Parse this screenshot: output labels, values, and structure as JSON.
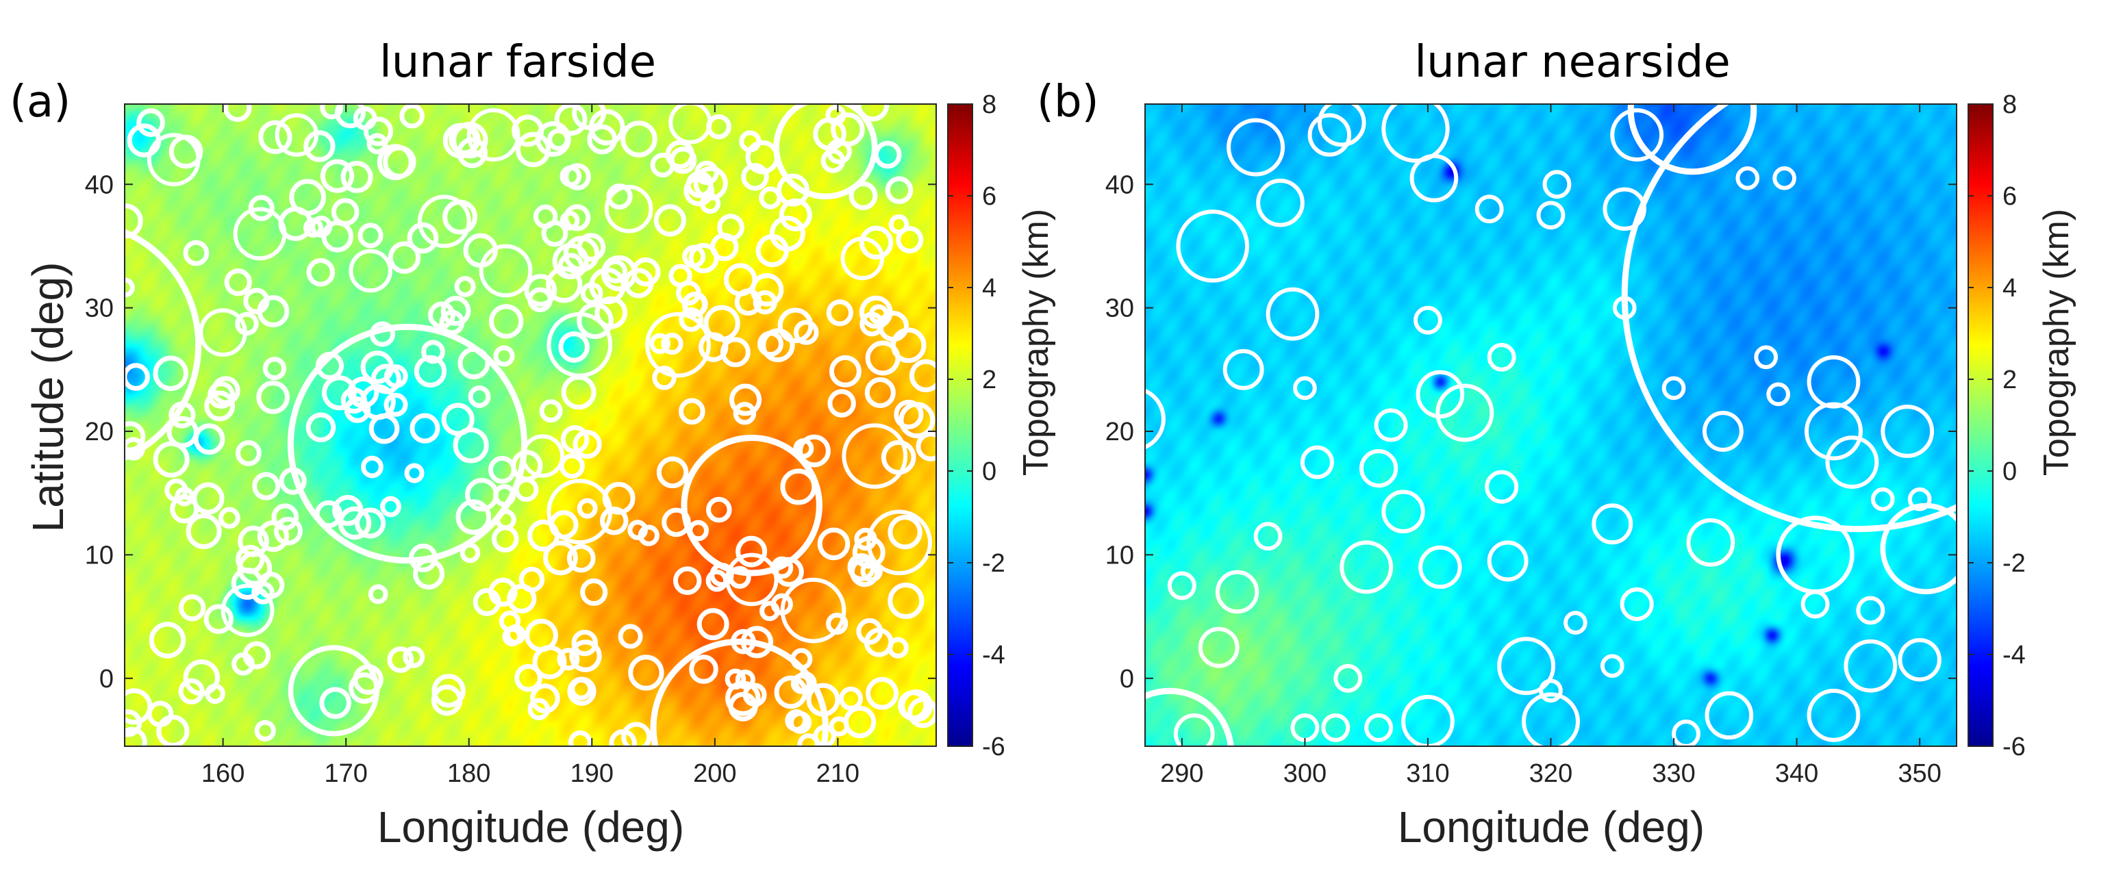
{
  "chart_data": [
    {
      "type": "heatmap",
      "panel_label": "(a)",
      "title": "lunar farside",
      "xlabel": "Longitude (deg)",
      "ylabel": "Latitude (deg)",
      "xlim": [
        152,
        218
      ],
      "ylim": [
        -5.5,
        46.5
      ],
      "xticks": [
        160,
        170,
        180,
        190,
        200,
        210
      ],
      "yticks": [
        0,
        10,
        20,
        30,
        40
      ],
      "colorbar": {
        "label": "Topography (km)",
        "range": [
          -6,
          8
        ],
        "ticks": [
          -6,
          -4,
          -2,
          0,
          2,
          4,
          6,
          8
        ],
        "colormap": "jet"
      },
      "field": {
        "background_km": 2.2,
        "blobs": [
          {
            "x": 205,
            "y": 12,
            "r": 14,
            "v": 5.5
          },
          {
            "x": 195,
            "y": 5,
            "r": 12,
            "v": 4.5
          },
          {
            "x": 212,
            "y": 25,
            "r": 10,
            "v": 4.0
          },
          {
            "x": 200,
            "y": 28,
            "r": 8,
            "v": 3.0
          },
          {
            "x": 185,
            "y": 30,
            "r": 10,
            "v": 1.5
          },
          {
            "x": 170,
            "y": 30,
            "r": 12,
            "v": 1.0
          },
          {
            "x": 160,
            "y": 40,
            "r": 8,
            "v": 0.8
          },
          {
            "x": 175,
            "y": 40,
            "r": 8,
            "v": 1.5
          },
          {
            "x": 190,
            "y": 42,
            "r": 8,
            "v": 1.2
          },
          {
            "x": 158,
            "y": 15,
            "r": 10,
            "v": 1.5
          },
          {
            "x": 175,
            "y": 5,
            "r": 10,
            "v": 1.8
          },
          {
            "x": 165,
            "y": 0,
            "r": 8,
            "v": 1.5
          },
          {
            "x": 202,
            "y": -2,
            "r": 6,
            "v": 3.5
          }
        ],
        "basins": [
          {
            "x": 174,
            "y": 19,
            "r": 10,
            "v": -1.5
          },
          {
            "x": 152,
            "y": 25,
            "r": 4,
            "v": -2.2
          },
          {
            "x": 162,
            "y": 6,
            "r": 2,
            "v": -2.5
          },
          {
            "x": 158,
            "y": 19,
            "r": 1.5,
            "v": -1.5
          },
          {
            "x": 153,
            "y": 44,
            "r": 3,
            "v": -0.8
          },
          {
            "x": 188,
            "y": 27,
            "r": 3,
            "v": -0.5
          },
          {
            "x": 170,
            "y": 44,
            "r": 2.5,
            "v": -0.5
          },
          {
            "x": 214,
            "y": 42,
            "r": 3,
            "v": -0.2
          },
          {
            "x": 168,
            "y": -2,
            "r": 4,
            "v": 0.3
          }
        ]
      },
      "craters": [
        {
          "lon": 175.0,
          "lat": 19.0,
          "r": 9.5
        },
        {
          "lon": 148.0,
          "lat": 27.0,
          "r": 10.0
        },
        {
          "lon": 202.0,
          "lat": -4.0,
          "r": 7.0
        },
        {
          "lon": 209.0,
          "lat": 43.0,
          "r": 4.0
        },
        {
          "lon": 203.0,
          "lat": 14.0,
          "r": 5.5
        },
        {
          "lon": 197.0,
          "lat": 27.0,
          "r": 2.5
        },
        {
          "lon": 213.0,
          "lat": 18.0,
          "r": 2.5
        },
        {
          "lon": 189.0,
          "lat": 13.5,
          "r": 2.5
        },
        {
          "lon": 189.0,
          "lat": 27.0,
          "r": 2.5
        },
        {
          "lon": 178.0,
          "lat": 37.0,
          "r": 2.0
        },
        {
          "lon": 162.0,
          "lat": 5.5,
          "r": 2.0
        },
        {
          "lon": 169.0,
          "lat": -1.0,
          "r": 3.5
        },
        {
          "lon": 208.0,
          "lat": 5.5,
          "r": 2.5
        },
        {
          "lon": 156.0,
          "lat": 42.0,
          "r": 2.0
        },
        {
          "lon": 163.0,
          "lat": 36.0,
          "r": 2.0
        },
        {
          "lon": 183.0,
          "lat": 33.0,
          "r": 2.0
        },
        {
          "lon": 203.0,
          "lat": 8.0,
          "r": 2.0
        },
        {
          "lon": 215.0,
          "lat": 11.0,
          "r": 2.5
        },
        {
          "lon": 182.0,
          "lat": 44.0,
          "r": 2.0
        },
        {
          "lon": 160.0,
          "lat": 28.0,
          "r": 1.8
        },
        {
          "lon": 172.0,
          "lat": 33.0,
          "r": 1.6
        },
        {
          "lon": 193.0,
          "lat": 38.0,
          "r": 1.8
        },
        {
          "lon": 166.0,
          "lat": 44.0,
          "r": 1.6
        },
        {
          "lon": 198.0,
          "lat": 45.0,
          "r": 1.6
        },
        {
          "lon": 186.0,
          "lat": 18.0,
          "r": 1.6
        },
        {
          "lon": 212.0,
          "lat": 34.0,
          "r": 1.6
        }
      ],
      "small_craters": {
        "count": 330,
        "seed": 7,
        "r_min": 0.6,
        "r_max": 1.3
      }
    },
    {
      "type": "heatmap",
      "panel_label": "(b)",
      "title": "lunar nearside",
      "xlabel": "Longitude (deg)",
      "ylabel": "",
      "xlim": [
        287,
        353
      ],
      "ylim": [
        -5.5,
        46.5
      ],
      "xticks": [
        290,
        300,
        310,
        320,
        330,
        340,
        350
      ],
      "yticks": [
        0,
        10,
        20,
        30,
        40
      ],
      "colorbar": {
        "label": "Topography (km)",
        "range": [
          -6,
          8
        ],
        "ticks": [
          -6,
          -4,
          -2,
          0,
          2,
          4,
          6,
          8
        ],
        "colormap": "jet"
      },
      "field": {
        "background_km": -1.5,
        "blobs": [
          {
            "x": 300,
            "y": 5,
            "r": 14,
            "v": 0.9
          },
          {
            "x": 292,
            "y": 0,
            "r": 8,
            "v": 1.0
          },
          {
            "x": 315,
            "y": 22,
            "r": 8,
            "v": 0.6
          },
          {
            "x": 333,
            "y": 8,
            "r": 8,
            "v": 0.7
          },
          {
            "x": 345,
            "y": 15,
            "r": 8,
            "v": 0.4
          },
          {
            "x": 325,
            "y": 30,
            "r": 6,
            "v": 0.2
          },
          {
            "x": 296,
            "y": 40,
            "r": 8,
            "v": -0.4
          }
        ],
        "basins": [
          {
            "x": 340,
            "y": 30,
            "r": 18,
            "v": -2.3
          },
          {
            "x": 330,
            "y": 46,
            "r": 6,
            "v": -3.0
          },
          {
            "x": 296,
            "y": 46,
            "r": 8,
            "v": -2.3
          },
          {
            "x": 312,
            "y": 41,
            "r": 1.0,
            "v": -4.5
          },
          {
            "x": 339,
            "y": 9.5,
            "r": 1.2,
            "v": -4.5
          },
          {
            "x": 338,
            "y": 3.5,
            "r": 0.8,
            "v": -4.0
          },
          {
            "x": 333,
            "y": 0,
            "r": 0.8,
            "v": -4.0
          },
          {
            "x": 293,
            "y": 21,
            "r": 0.8,
            "v": -3.8
          },
          {
            "x": 311,
            "y": 24,
            "r": 0.8,
            "v": -3.5
          },
          {
            "x": 347,
            "y": 26.5,
            "r": 0.8,
            "v": -4.0
          },
          {
            "x": 287,
            "y": 16.5,
            "r": 0.8,
            "v": -4.0
          },
          {
            "x": 287,
            "y": 13.5,
            "r": 0.8,
            "v": -4.0
          }
        ]
      },
      "craters": [
        {
          "lon": 345.0,
          "lat": 31.0,
          "r": 19.0
        },
        {
          "lon": 331.5,
          "lat": 46.0,
          "r": 5.0
        },
        {
          "lon": 289.0,
          "lat": -6.0,
          "r": 5.0
        },
        {
          "lon": 286.0,
          "lat": 21.0,
          "r": 2.5
        },
        {
          "lon": 292.5,
          "lat": 35.0,
          "r": 2.8
        },
        {
          "lon": 296.0,
          "lat": 43.0,
          "r": 2.2
        },
        {
          "lon": 299.0,
          "lat": 29.5,
          "r": 2.0
        },
        {
          "lon": 298.0,
          "lat": 38.5,
          "r": 1.8
        },
        {
          "lon": 302.0,
          "lat": 44.0,
          "r": 1.6
        },
        {
          "lon": 309.0,
          "lat": 44.5,
          "r": 2.6
        },
        {
          "lon": 310.5,
          "lat": 40.5,
          "r": 1.8
        },
        {
          "lon": 303.0,
          "lat": 45.0,
          "r": 1.8
        },
        {
          "lon": 311.0,
          "lat": 23.0,
          "r": 1.8
        },
        {
          "lon": 313.0,
          "lat": 21.5,
          "r": 2.2
        },
        {
          "lon": 327.0,
          "lat": 44.0,
          "r": 2.0
        },
        {
          "lon": 326.0,
          "lat": 38.0,
          "r": 1.6
        },
        {
          "lon": 343.0,
          "lat": 20.0,
          "r": 2.2
        },
        {
          "lon": 341.5,
          "lat": 10.0,
          "r": 3.0
        },
        {
          "lon": 350.5,
          "lat": 10.5,
          "r": 3.5
        },
        {
          "lon": 344.5,
          "lat": 17.5,
          "r": 2.0
        },
        {
          "lon": 333.0,
          "lat": 11.0,
          "r": 1.8
        },
        {
          "lon": 325.0,
          "lat": 12.5,
          "r": 1.5
        },
        {
          "lon": 334.0,
          "lat": 20.0,
          "r": 1.5
        },
        {
          "lon": 343.0,
          "lat": 24.0,
          "r": 2.0
        },
        {
          "lon": 349.0,
          "lat": 20.0,
          "r": 2.0
        },
        {
          "lon": 305.0,
          "lat": 9.0,
          "r": 2.0
        },
        {
          "lon": 308.0,
          "lat": 13.5,
          "r": 1.6
        },
        {
          "lon": 306.0,
          "lat": 17.0,
          "r": 1.4
        },
        {
          "lon": 311.0,
          "lat": 9.0,
          "r": 1.6
        },
        {
          "lon": 301.0,
          "lat": 17.5,
          "r": 1.2
        },
        {
          "lon": 307.0,
          "lat": 20.5,
          "r": 1.2
        },
        {
          "lon": 295.0,
          "lat": 25.0,
          "r": 1.5
        },
        {
          "lon": 293.0,
          "lat": 2.5,
          "r": 1.5
        },
        {
          "lon": 294.5,
          "lat": 7.0,
          "r": 1.6
        },
        {
          "lon": 318.0,
          "lat": 1.0,
          "r": 2.2
        },
        {
          "lon": 320.0,
          "lat": -3.5,
          "r": 2.2
        },
        {
          "lon": 310.0,
          "lat": -3.5,
          "r": 2.0
        },
        {
          "lon": 346.0,
          "lat": 1.0,
          "r": 2.0
        },
        {
          "lon": 343.0,
          "lat": -3.0,
          "r": 2.0
        },
        {
          "lon": 350.0,
          "lat": 1.5,
          "r": 1.6
        },
        {
          "lon": 334.5,
          "lat": -3.0,
          "r": 1.8
        },
        {
          "lon": 316.5,
          "lat": 9.5,
          "r": 1.5
        },
        {
          "lon": 303.5,
          "lat": 0.0,
          "r": 1.0
        },
        {
          "lon": 315.0,
          "lat": 38.0,
          "r": 1.0
        },
        {
          "lon": 320.5,
          "lat": 40.0,
          "r": 1.0
        },
        {
          "lon": 316.0,
          "lat": 15.5,
          "r": 1.2
        },
        {
          "lon": 320.0,
          "lat": 37.5,
          "r": 1.0
        },
        {
          "lon": 339.0,
          "lat": 40.5,
          "r": 0.8
        },
        {
          "lon": 336.0,
          "lat": 40.5,
          "r": 0.8
        },
        {
          "lon": 300.0,
          "lat": 23.5,
          "r": 0.8
        },
        {
          "lon": 310.0,
          "lat": 29.0,
          "r": 1.0
        },
        {
          "lon": 316.0,
          "lat": 26.0,
          "r": 1.0
        },
        {
          "lon": 326.0,
          "lat": 30.0,
          "r": 0.8
        },
        {
          "lon": 322.0,
          "lat": 4.5,
          "r": 0.8
        },
        {
          "lon": 337.5,
          "lat": 26.0,
          "r": 0.8
        },
        {
          "lon": 338.5,
          "lat": 23.0,
          "r": 0.8
        },
        {
          "lon": 330.0,
          "lat": 23.5,
          "r": 0.8
        },
        {
          "lon": 297.0,
          "lat": 11.5,
          "r": 1.0
        },
        {
          "lon": 290.0,
          "lat": 7.5,
          "r": 1.0
        },
        {
          "lon": 291.0,
          "lat": -4.5,
          "r": 1.5
        },
        {
          "lon": 300.0,
          "lat": -4.0,
          "r": 1.0
        },
        {
          "lon": 302.5,
          "lat": -4.0,
          "r": 1.0
        },
        {
          "lon": 306.0,
          "lat": -4.0,
          "r": 1.0
        },
        {
          "lon": 327.0,
          "lat": 6.0,
          "r": 1.2
        },
        {
          "lon": 341.5,
          "lat": 6.0,
          "r": 1.0
        },
        {
          "lon": 331.0,
          "lat": -4.5,
          "r": 1.0
        },
        {
          "lon": 346.0,
          "lat": 5.5,
          "r": 1.0
        },
        {
          "lon": 350.0,
          "lat": 14.5,
          "r": 0.8
        },
        {
          "lon": 320.0,
          "lat": -1.0,
          "r": 0.8
        },
        {
          "lon": 325.0,
          "lat": 1.0,
          "r": 0.8
        },
        {
          "lon": 347.0,
          "lat": 14.5,
          "r": 0.8
        }
      ],
      "small_craters": {
        "count": 0,
        "seed": 3,
        "r_min": 0.6,
        "r_max": 1.0
      }
    }
  ]
}
